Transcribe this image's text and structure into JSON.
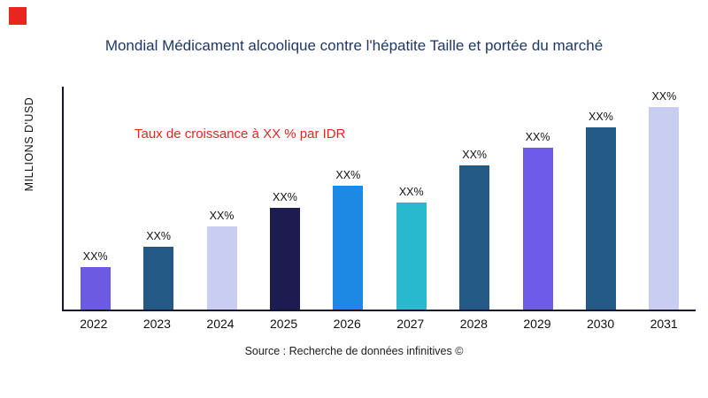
{
  "brand": {
    "logo_color": "#E8251F"
  },
  "chart_data": {
    "type": "bar",
    "title": "Mondial Médicament alcoolique contre l'hépatite Taille et portée du marché",
    "ylabel": "MILLIONS D'USD",
    "xlabel": "",
    "categories": [
      "2022",
      "2023",
      "2024",
      "2025",
      "2026",
      "2027",
      "2028",
      "2029",
      "2030",
      "2031"
    ],
    "values": [
      21,
      31,
      41,
      50,
      61,
      53,
      71,
      80,
      90,
      100
    ],
    "bar_labels": [
      "XX%",
      "XX%",
      "XX%",
      "XX%",
      "XX%",
      "XX%",
      "XX%",
      "XX%",
      "XX%",
      "XX%"
    ],
    "bar_colors": [
      "#6A5BE2",
      "#235A85",
      "#C9CDF2",
      "#1C1C50",
      "#1E88E5",
      "#29B9CE",
      "#235A85",
      "#6C5CE7",
      "#235A85",
      "#C9CDF2"
    ],
    "ylim": [
      0,
      110
    ],
    "grid": false,
    "legend": "none",
    "annotation": "Taux de croissance à XX % par IDR",
    "annotation_color": "#E8251F",
    "title_color": "#1F3864",
    "axis_color": "#15152c"
  },
  "footer": {
    "source": "Source : Recherche de données infinitives ©"
  }
}
